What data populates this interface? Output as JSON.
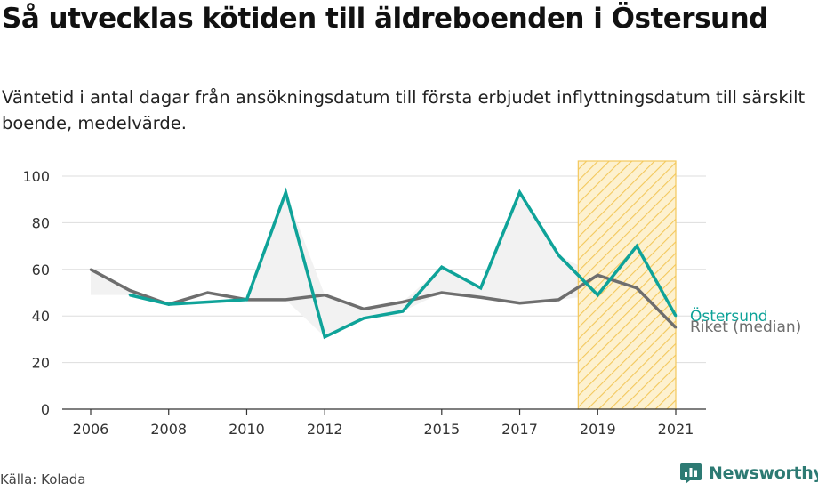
{
  "title": "Så utvecklas kötiden till äldreboenden i Östersund",
  "subtitle": "Väntetid i antal dagar från ansökningsdatum till första erbjudet inflyttningsdatum till särskilt boende, medelvärde.",
  "source": "Källa: Kolada",
  "brand": "Newsworthy",
  "colors": {
    "ostersund": "#0fa399",
    "riket": "#6e6e6e",
    "highlight_fill": "#fdf1cf",
    "highlight_stroke": "#f3c85c",
    "band_fill": "#f2f2f2",
    "brand": "#2d7a73"
  },
  "chart_data": {
    "type": "line",
    "x_ticks": [
      "2006",
      "2008",
      "2010",
      "2012",
      "2015",
      "2017",
      "2019",
      "2021"
    ],
    "ylim": [
      0,
      100
    ],
    "y_ticks": [
      "0",
      "20",
      "40",
      "60",
      "80",
      "100"
    ],
    "highlight_range": [
      2018.5,
      2021
    ],
    "series": [
      {
        "name": "Östersund",
        "x": [
          2007,
          2008,
          2010,
          2011,
          2012,
          2013,
          2014,
          2015,
          2016,
          2017,
          2018,
          2019,
          2020,
          2021
        ],
        "values": [
          49,
          45,
          47,
          93,
          31,
          39,
          42,
          61,
          52,
          93,
          66,
          49,
          70,
          40
        ]
      },
      {
        "name": "Riket (median)",
        "x": [
          2006,
          2007,
          2008,
          2009,
          2010,
          2011,
          2012,
          2013,
          2014,
          2015,
          2016,
          2017,
          2018,
          2019,
          2020,
          2021
        ],
        "values": [
          60,
          51,
          45,
          50,
          47,
          47,
          49,
          43,
          46,
          50,
          48,
          45.5,
          47,
          57.5,
          52,
          35
        ]
      }
    ]
  }
}
